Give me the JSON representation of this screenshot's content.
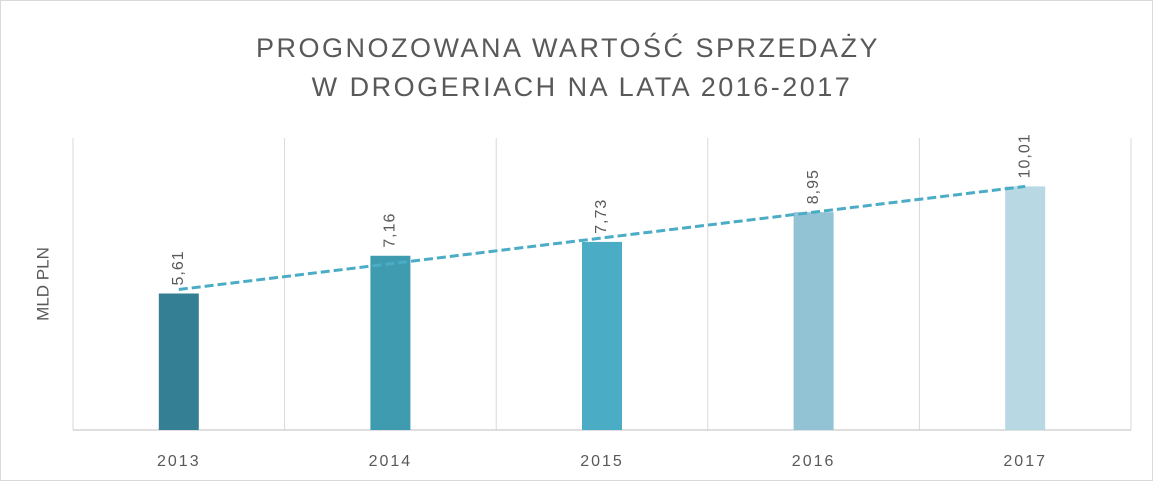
{
  "chart_data": {
    "type": "bar",
    "title": [
      "PROGNOZOWANA WARTOŚĆ SPRZEDAŻY",
      "W DROGERIACH NA LATA 2016-2017"
    ],
    "y_label": "MLD PLN",
    "categories": [
      "2013",
      "2014",
      "2015",
      "2016",
      "2017"
    ],
    "values": [
      5.61,
      7.16,
      7.73,
      8.95,
      10.01
    ],
    "value_labels": [
      "5,61",
      "7,16",
      "7,73",
      "8,95",
      "10,01"
    ],
    "colors": [
      "#347f93",
      "#3f9bb0",
      "#4bacc6",
      "#92c3d4",
      "#b8d8e3"
    ],
    "trendline": {
      "kind": "linear",
      "color": "#4bacc6"
    },
    "ylim": [
      0,
      12
    ],
    "grid": true
  }
}
